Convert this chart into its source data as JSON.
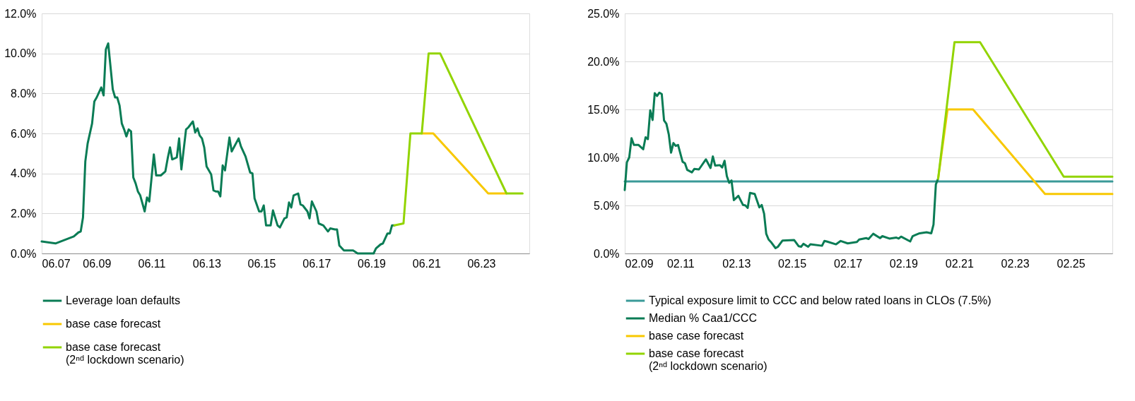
{
  "chart_data": [
    {
      "type": "line",
      "legend": "bottom",
      "grid": "y",
      "xlim": [
        "2007-06",
        "2025-03"
      ],
      "xticks": [
        {
          "value": "2007-06",
          "label": "06.07"
        },
        {
          "value": "2009-06",
          "label": "06.09"
        },
        {
          "value": "2011-06",
          "label": "06.11"
        },
        {
          "value": "2013-06",
          "label": "06.13"
        },
        {
          "value": "2015-06",
          "label": "06.15"
        },
        {
          "value": "2017-06",
          "label": "06.17"
        },
        {
          "value": "2019-06",
          "label": "06.19"
        },
        {
          "value": "2021-06",
          "label": "06.21"
        },
        {
          "value": "2023-06",
          "label": "06.23"
        }
      ],
      "ylim": [
        0,
        12
      ],
      "yticks": [
        {
          "value": 0,
          "label": "0.0%"
        },
        {
          "value": 2,
          "label": "2.0%"
        },
        {
          "value": 4,
          "label": "4.0%"
        },
        {
          "value": 6,
          "label": "6.0%"
        },
        {
          "value": 8,
          "label": "8.0%"
        },
        {
          "value": 10,
          "label": "10.0%"
        },
        {
          "value": 12,
          "label": "12.0%"
        }
      ],
      "series": [
        {
          "name": "Leverage loan defaults",
          "color": "#0a7c55",
          "x": [
            "2007-06",
            "2007-12",
            "2008-08",
            "2008-10",
            "2008-11",
            "2008-12",
            "2009-01",
            "2009-02",
            "2009-04",
            "2009-05",
            "2009-06",
            "2009-08",
            "2009-09",
            "2009-10",
            "2009-11",
            "2010-01",
            "2010-02",
            "2010-03",
            "2010-04",
            "2010-05",
            "2010-06",
            "2010-07",
            "2010-08",
            "2010-09",
            "2010-10",
            "2010-11",
            "2010-12",
            "2011-01",
            "2011-03",
            "2011-04",
            "2011-05",
            "2011-07",
            "2011-08",
            "2011-10",
            "2011-12",
            "2012-01",
            "2012-02",
            "2012-03",
            "2012-05",
            "2012-06",
            "2012-07",
            "2012-09",
            "2012-10",
            "2012-12",
            "2013-01",
            "2013-02",
            "2013-03",
            "2013-04",
            "2013-05",
            "2013-06",
            "2013-08",
            "2013-09",
            "2013-10",
            "2013-11",
            "2013-12",
            "2014-01",
            "2014-02",
            "2014-04",
            "2014-05",
            "2014-08",
            "2014-09",
            "2014-11",
            "2015-01",
            "2015-02",
            "2015-03",
            "2015-05",
            "2015-06",
            "2015-07",
            "2015-08",
            "2015-10",
            "2015-11",
            "2016-01",
            "2016-02",
            "2016-04",
            "2016-05",
            "2016-06",
            "2016-07",
            "2016-08",
            "2016-10",
            "2016-11",
            "2016-12",
            "2017-02",
            "2017-03",
            "2017-04",
            "2017-06",
            "2017-07",
            "2017-09",
            "2017-11",
            "2017-12",
            "2018-02",
            "2018-03",
            "2018-04",
            "2018-06",
            "2018-10",
            "2018-12",
            "2019-07",
            "2019-08",
            "2019-10",
            "2019-11",
            "2020-01",
            "2020-02",
            "2020-03",
            "2020-04"
          ],
          "values": [
            0.6,
            0.5,
            0.85,
            1.05,
            1.1,
            1.8,
            4.6,
            5.5,
            6.5,
            7.6,
            7.8,
            8.3,
            7.9,
            10.2,
            10.5,
            8.2,
            7.8,
            7.8,
            7.4,
            6.5,
            6.2,
            5.85,
            6.2,
            6.1,
            3.8,
            3.5,
            3.1,
            2.9,
            2.1,
            2.8,
            2.6,
            4.95,
            3.9,
            3.9,
            4.1,
            4.75,
            5.3,
            4.7,
            4.8,
            5.75,
            4.2,
            6.2,
            6.3,
            6.6,
            6.05,
            6.25,
            5.9,
            5.75,
            5.3,
            4.35,
            3.95,
            3.15,
            3.1,
            3.1,
            2.85,
            4.4,
            4.15,
            5.8,
            5.1,
            5.75,
            5.35,
            4.85,
            4.05,
            4.0,
            2.75,
            2.1,
            2.1,
            2.4,
            1.4,
            1.4,
            2.15,
            1.4,
            1.3,
            1.75,
            1.8,
            2.55,
            2.3,
            2.9,
            3.0,
            2.45,
            2.4,
            2.1,
            1.75,
            2.6,
            2.1,
            1.5,
            1.4,
            1.1,
            1.25,
            1.2,
            1.2,
            0.4,
            0.15,
            0.15,
            0.0,
            0.0,
            0.25,
            0.45,
            0.5,
            1.0,
            1.0,
            1.4,
            1.4
          ]
        },
        {
          "name": "base case forecast",
          "color": "#f8c800",
          "x": [
            "2021-04",
            "2021-09",
            "2023-09",
            "2024-05"
          ],
          "values": [
            6.0,
            6.0,
            3.0,
            3.0
          ]
        },
        {
          "name": "base case forecast\n(2ⁿᵈ lockdown scenario)",
          "color": "#92d400",
          "x": [
            "2020-04",
            "2020-08",
            "2020-11",
            "2021-04",
            "2021-07",
            "2021-12",
            "2024-05",
            "2024-12"
          ],
          "values": [
            1.4,
            1.5,
            6.0,
            6.0,
            10.0,
            10.0,
            3.0,
            3.0
          ]
        }
      ]
    },
    {
      "type": "line",
      "legend": "bottom",
      "grid": "y",
      "xlim": [
        "2009-02",
        "2026-08"
      ],
      "xticks": [
        {
          "value": "2009-02",
          "label": "02.09"
        },
        {
          "value": "2011-02",
          "label": "02.11"
        },
        {
          "value": "2013-02",
          "label": "02.13"
        },
        {
          "value": "2015-02",
          "label": "02.15"
        },
        {
          "value": "2017-02",
          "label": "02.17"
        },
        {
          "value": "2019-02",
          "label": "02.19"
        },
        {
          "value": "2021-02",
          "label": "02.21"
        },
        {
          "value": "2023-02",
          "label": "02.23"
        },
        {
          "value": "2025-02",
          "label": "02.25"
        }
      ],
      "ylim": [
        0,
        25
      ],
      "yticks": [
        {
          "value": 0,
          "label": "0.0%"
        },
        {
          "value": 5,
          "label": "5.0%"
        },
        {
          "value": 10,
          "label": "10.0%"
        },
        {
          "value": 15,
          "label": "15.0%"
        },
        {
          "value": 20,
          "label": "20.0%"
        },
        {
          "value": 25,
          "label": "25.0%"
        }
      ],
      "series": [
        {
          "name": "Typical exposure limit to CCC and below rated loans in CLOs (7.5%)",
          "color": "#3a9a98",
          "x": [
            "2009-02",
            "2026-08"
          ],
          "values": [
            7.5,
            7.5
          ]
        },
        {
          "name": "Median % Caa1/CCC",
          "color": "#0a7c55",
          "x": [
            "2009-02",
            "2009-03",
            "2009-04",
            "2009-05",
            "2009-06",
            "2009-08",
            "2009-10",
            "2009-11",
            "2009-12",
            "2010-01",
            "2010-02",
            "2010-03",
            "2010-04",
            "2010-05",
            "2010-06",
            "2010-07",
            "2010-08",
            "2010-09",
            "2010-10",
            "2010-11",
            "2010-12",
            "2011-01",
            "2011-03",
            "2011-04",
            "2011-05",
            "2011-07",
            "2011-08",
            "2011-10",
            "2012-01",
            "2012-03",
            "2012-04",
            "2012-05",
            "2012-07",
            "2012-08",
            "2012-09",
            "2012-10",
            "2012-11",
            "2012-12",
            "2013-01",
            "2013-03",
            "2013-05",
            "2013-06",
            "2013-07",
            "2013-08",
            "2013-10",
            "2013-12",
            "2014-01",
            "2014-02",
            "2014-03",
            "2014-04",
            "2014-05",
            "2014-07",
            "2014-08",
            "2014-10",
            "2015-03",
            "2015-05",
            "2015-06",
            "2015-07",
            "2015-09",
            "2015-10",
            "2016-03",
            "2016-04",
            "2016-05",
            "2016-09",
            "2016-11",
            "2017-02",
            "2017-06",
            "2017-07",
            "2017-10",
            "2017-11",
            "2018-01",
            "2018-04",
            "2018-05",
            "2018-08",
            "2018-11",
            "2018-12",
            "2019-01",
            "2019-05",
            "2019-06",
            "2019-07",
            "2019-09",
            "2019-12",
            "2020-02",
            "2020-03",
            "2020-04",
            "2020-05"
          ],
          "values": [
            6.6,
            9.5,
            10.0,
            12.0,
            11.3,
            11.3,
            10.85,
            12.1,
            11.9,
            14.9,
            13.9,
            16.7,
            16.4,
            16.75,
            16.6,
            13.85,
            13.5,
            12.4,
            10.5,
            11.5,
            11.2,
            11.3,
            9.55,
            9.4,
            8.7,
            8.45,
            8.8,
            8.75,
            9.8,
            8.9,
            10.1,
            9.15,
            9.2,
            8.95,
            9.65,
            8.05,
            7.35,
            7.6,
            5.55,
            6.0,
            5.05,
            5.0,
            4.75,
            6.3,
            6.2,
            4.8,
            5.05,
            4.15,
            2.05,
            1.45,
            1.2,
            0.55,
            0.7,
            1.35,
            1.4,
            0.75,
            0.7,
            1.0,
            0.7,
            0.95,
            0.8,
            1.3,
            1.25,
            0.95,
            1.3,
            1.05,
            1.2,
            1.45,
            1.6,
            1.5,
            2.05,
            1.6,
            1.8,
            1.55,
            1.65,
            1.55,
            1.75,
            1.25,
            1.8,
            1.9,
            2.1,
            2.2,
            2.1,
            3.0,
            7.2,
            7.8
          ]
        },
        {
          "name": "base case forecast",
          "color": "#f8c800",
          "x": [
            "2020-05",
            "2020-09",
            "2021-08",
            "2024-03",
            "2026-08"
          ],
          "values": [
            7.8,
            15.0,
            15.0,
            6.2,
            6.2
          ]
        },
        {
          "name": "base case forecast\n(2ⁿᵈ lockdown scenario)",
          "color": "#92d400",
          "x": [
            "2020-05",
            "2020-12",
            "2021-11",
            "2024-11",
            "2026-08"
          ],
          "values": [
            7.8,
            22.0,
            22.0,
            8.0,
            8.0
          ]
        }
      ]
    }
  ]
}
